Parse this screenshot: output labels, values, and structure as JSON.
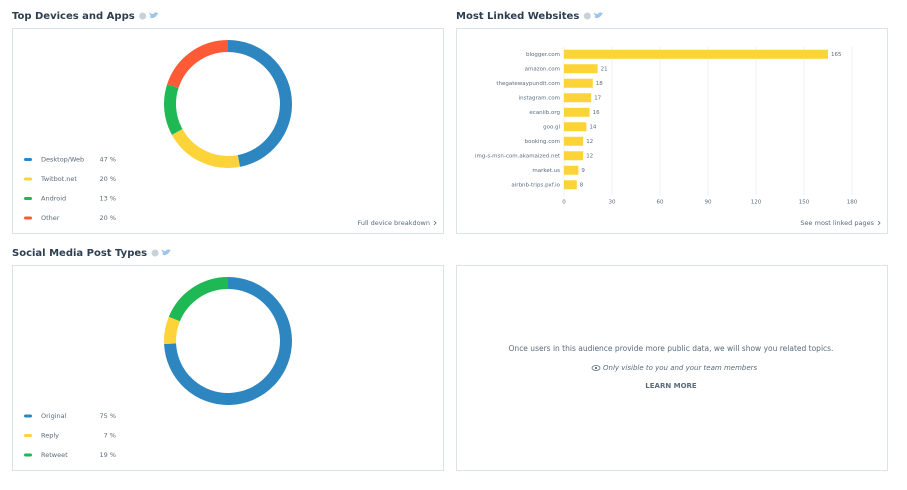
{
  "chart_data": [
    {
      "type": "donut",
      "title": "Top Devices and Apps",
      "link": "Full device breakdown",
      "categories": [
        "Desktop/Web",
        "Twitbot.net",
        "Android",
        "Other"
      ],
      "values": [
        47,
        20,
        13,
        20
      ],
      "value_labels": [
        "47 %",
        "20 %",
        "13 %",
        "20 %"
      ],
      "colors": [
        "#2e86c1",
        "#fdd33a",
        "#1eb954",
        "#ff5a36"
      ]
    },
    {
      "type": "hbar",
      "title": "Most Linked Websites",
      "link": "See most linked pages",
      "categories": [
        "blogger.com",
        "amazon.com",
        "thegatewaypundit.com",
        "instagram.com",
        "ecanlib.org",
        "goo.gl",
        "booking.com",
        "img-s-msn-com.akamaized.net",
        "market.us",
        "airbnb-trips.pxf.io"
      ],
      "values": [
        165,
        21,
        18,
        17,
        16,
        14,
        12,
        12,
        9,
        8
      ],
      "color": "#fdd33a",
      "xlim": [
        0,
        180
      ],
      "xticks": [
        0,
        30,
        60,
        90,
        120,
        150,
        180
      ],
      "grid": true
    },
    {
      "type": "donut",
      "title": "Social Media Post Types",
      "categories": [
        "Original",
        "Reply",
        "Retweet"
      ],
      "values": [
        75,
        7,
        19
      ],
      "value_labels": [
        "75 %",
        "7 %",
        "19 %"
      ],
      "colors": [
        "#2e86c1",
        "#fdd33a",
        "#1eb954"
      ]
    }
  ],
  "notice": {
    "message": "Once users in this audience provide more public data, we will show you related topics.",
    "note": "Only visible to you and your team members",
    "action": "LEARN MORE"
  }
}
